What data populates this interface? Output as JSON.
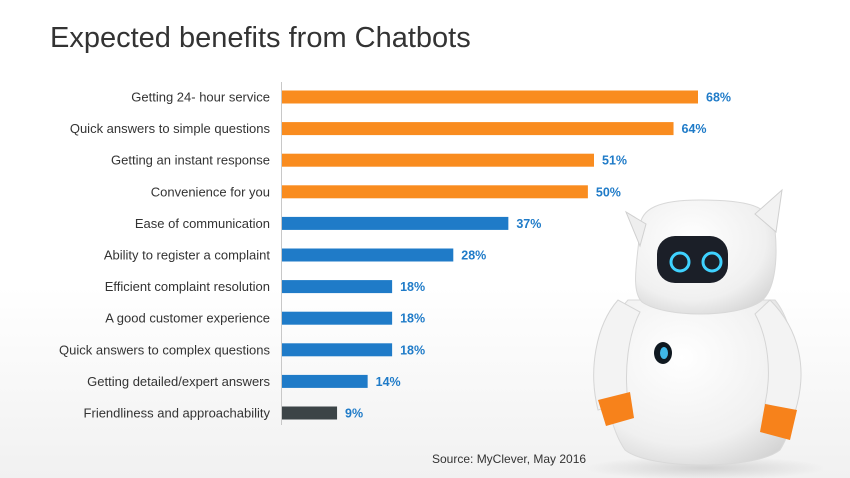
{
  "title": "Expected benefits from Chatbots",
  "source": "Source: MyClever, May 2016",
  "colors": {
    "orange": "#F98C1F",
    "blue": "#1F7BC8",
    "dark": "#3C4447",
    "label_blue": "#1F7BC8"
  },
  "chart_data": {
    "type": "bar",
    "orientation": "horizontal",
    "title": "Expected benefits from Chatbots",
    "xlabel": "",
    "ylabel": "",
    "xlim": [
      0,
      70
    ],
    "grid": false,
    "categories": [
      "Getting 24- hour service",
      "Quick answers to simple questions",
      "Getting an instant response",
      "Convenience for you",
      "Ease of communication",
      "Ability to register a complaint",
      "Efficient complaint resolution",
      "A good customer experience",
      "Quick answers to complex questions",
      "Getting detailed/expert answers",
      "Friendliness and approachability"
    ],
    "values": [
      68,
      64,
      51,
      50,
      37,
      28,
      18,
      18,
      18,
      14,
      9
    ],
    "value_labels": [
      "68%",
      "64%",
      "51%",
      "50%",
      "37%",
      "28%",
      "18%",
      "18%",
      "18%",
      "14%",
      "9%"
    ],
    "bar_colors": [
      "orange",
      "orange",
      "orange",
      "orange",
      "blue",
      "blue",
      "blue",
      "blue",
      "blue",
      "blue",
      "dark"
    ]
  }
}
